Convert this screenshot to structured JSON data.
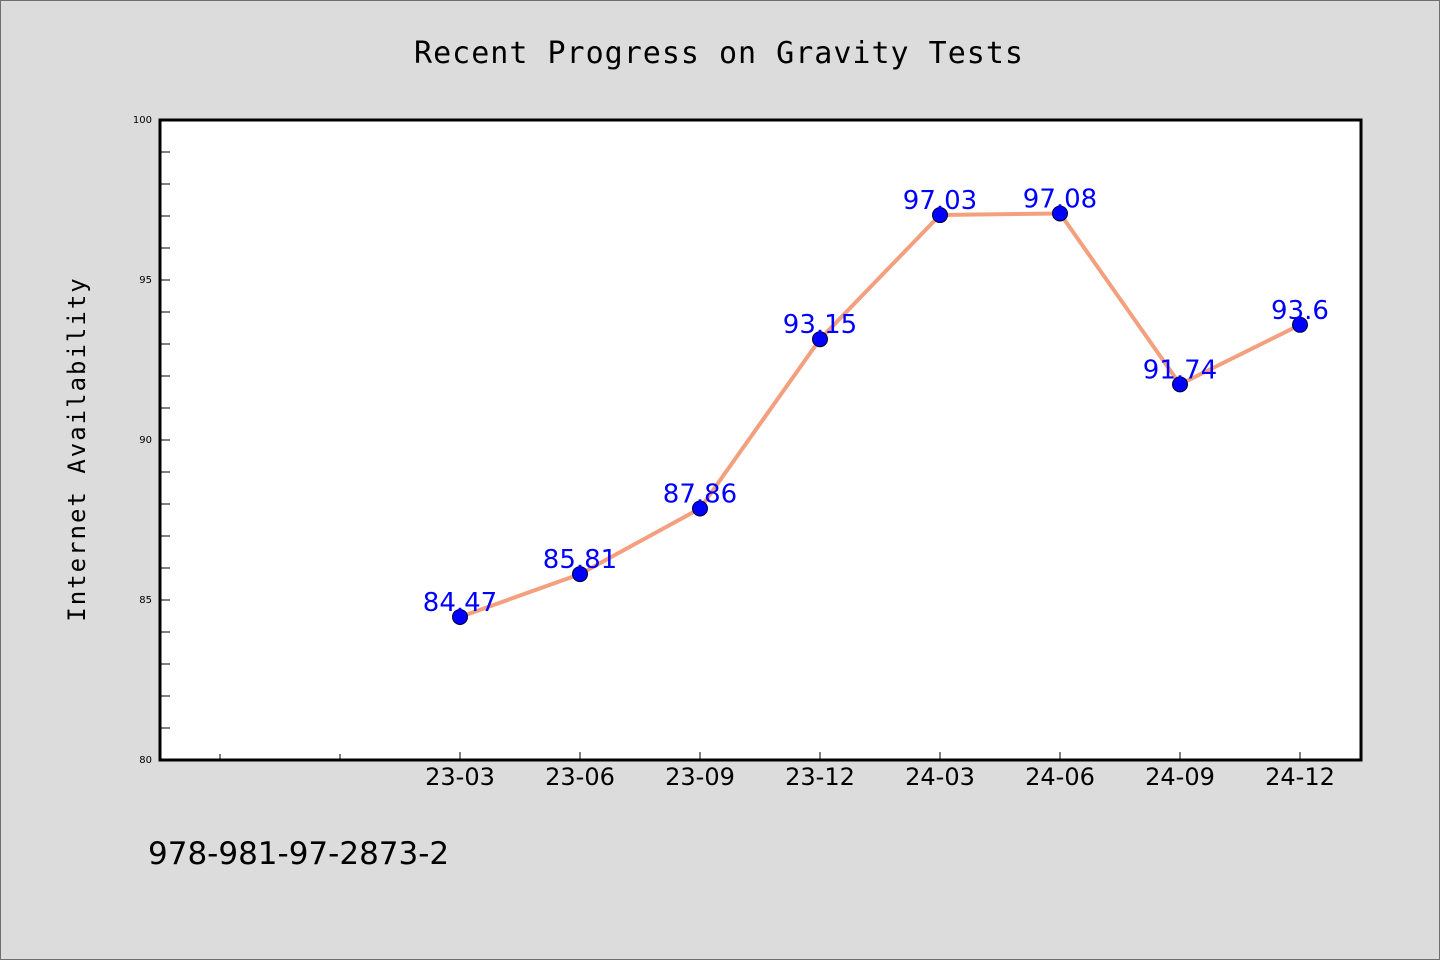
{
  "chart_data": {
    "type": "line",
    "title": "Recent Progress on Gravity Tests",
    "xlabel": "",
    "ylabel": "Internet Availability",
    "categories": [
      "23-03",
      "23-06",
      "23-09",
      "23-12",
      "24-03",
      "24-06",
      "24-09",
      "24-12"
    ],
    "series": [
      {
        "values": [
          84.47,
          85.81,
          87.86,
          93.15,
          97.03,
          97.08,
          91.74,
          93.6
        ],
        "labels": [
          "84.47",
          "85.81",
          "87.86",
          "93.15",
          "97.03",
          "97.08",
          "91.74",
          "93.6"
        ]
      }
    ],
    "ylim": [
      80,
      100
    ],
    "yticks": [
      "80",
      "85",
      "90",
      "95",
      "100"
    ],
    "grid": false,
    "legend": "none",
    "colors": {
      "line": "#f4a07f",
      "marker": "#0000ff",
      "data_label": "#0000ff",
      "plot_background": "#ffffff",
      "page_background": "#dcdcdc"
    }
  },
  "footer": {
    "isbn": "978-981-97-2873-2"
  }
}
